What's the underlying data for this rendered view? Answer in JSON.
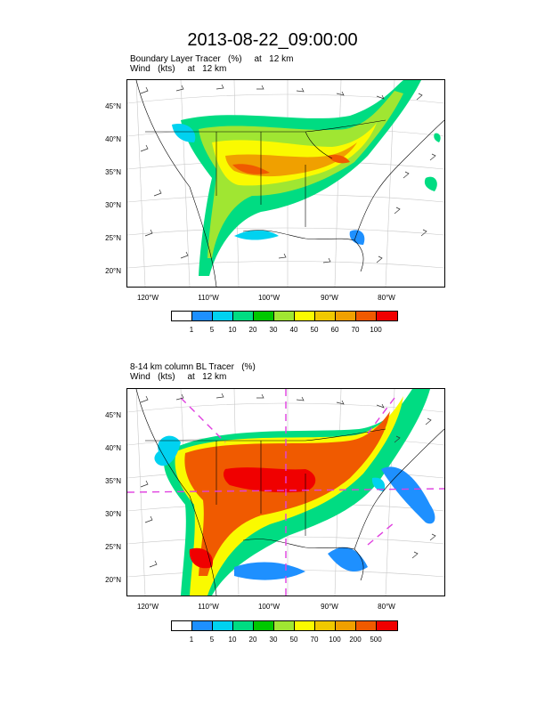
{
  "page_title": "2013-08-22_09:00:00",
  "panels": [
    {
      "title_line1": "Boundary Layer Tracer   (%)     at   12 km",
      "title_line2": "Wind   (kts)     at   12 km",
      "lat_labels": [
        "45°N",
        "40°N",
        "35°N",
        "30°N",
        "25°N",
        "20°N"
      ],
      "lon_labels": [
        "120°W",
        "110°W",
        "100°W",
        "90°W",
        "80°W"
      ],
      "colorbar_labels": [
        "1",
        "5",
        "10",
        "20",
        "30",
        "40",
        "50",
        "60",
        "70",
        "100"
      ],
      "colorbar_colors": [
        "#ffffff",
        "#1e90ff",
        "#00d2f0",
        "#00dc82",
        "#00c800",
        "#a0e632",
        "#fafa00",
        "#f0c800",
        "#f0a000",
        "#f05a00",
        "#f00000"
      ]
    },
    {
      "title_line1": "8-14 km column BL Tracer   (%)",
      "title_line2": "Wind   (kts)     at   12 km",
      "lat_labels": [
        "45°N",
        "40°N",
        "35°N",
        "30°N",
        "25°N",
        "20°N"
      ],
      "lon_labels": [
        "120°W",
        "110°W",
        "100°W",
        "90°W",
        "80°W"
      ],
      "colorbar_labels": [
        "1",
        "5",
        "10",
        "20",
        "30",
        "50",
        "70",
        "100",
        "200",
        "500"
      ],
      "colorbar_colors": [
        "#ffffff",
        "#1e90ff",
        "#00d2f0",
        "#00dc82",
        "#00c800",
        "#a0e632",
        "#fafa00",
        "#f0c800",
        "#f0a000",
        "#f05a00",
        "#f00000"
      ]
    }
  ]
}
